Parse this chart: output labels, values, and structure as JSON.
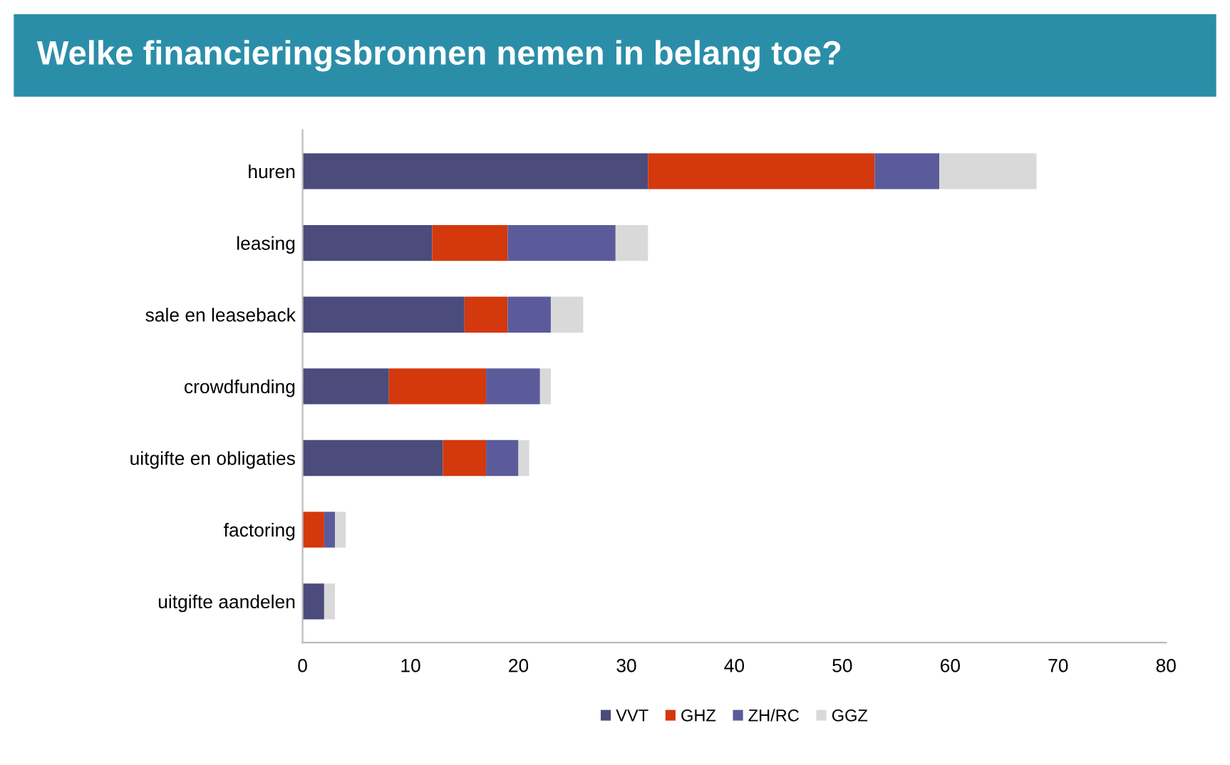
{
  "chart_data": {
    "type": "bar",
    "orientation": "horizontal",
    "stacked": true,
    "title": "Welke financieringsbronnen nemen in belang toe?",
    "categories": [
      "huren",
      "leasing",
      "sale en leaseback",
      "crowdfunding",
      "uitgifte en obligaties",
      "factoring",
      "uitgifte aandelen"
    ],
    "series": [
      {
        "name": "VVT",
        "color": "#4b4b7c",
        "values": [
          32,
          12,
          15,
          8,
          13,
          0,
          2
        ]
      },
      {
        "name": "GHZ",
        "color": "#d4380d",
        "values": [
          21,
          7,
          4,
          9,
          4,
          2,
          0
        ]
      },
      {
        "name": "ZH/RC",
        "color": "#5b5b9b",
        "values": [
          6,
          10,
          4,
          5,
          3,
          1,
          0
        ]
      },
      {
        "name": "GGZ",
        "color": "#d9d9d9",
        "values": [
          9,
          3,
          3,
          1,
          1,
          1,
          1
        ]
      }
    ],
    "xlim": [
      0,
      80
    ],
    "xticks": [
      0,
      10,
      20,
      30,
      40,
      50,
      60,
      70,
      80
    ],
    "grid": false,
    "legend": "bottom"
  }
}
